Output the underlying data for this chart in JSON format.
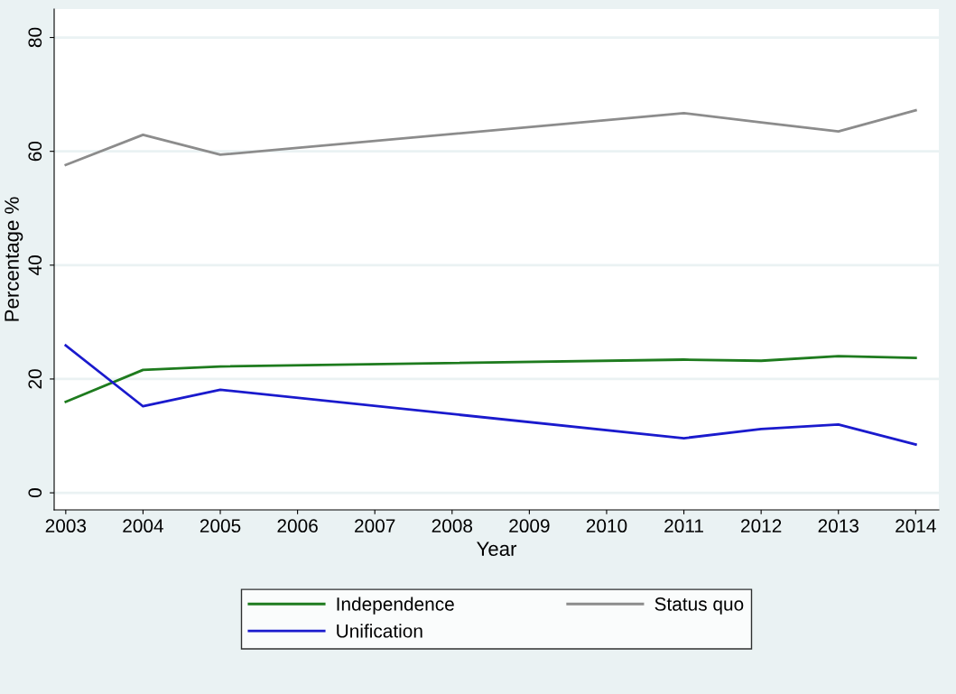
{
  "chart_data": {
    "type": "line",
    "xlabel": "Year",
    "ylabel": "Percentage %",
    "xlim": [
      2002.85,
      2014.3
    ],
    "xticks": [
      2003,
      2004,
      2005,
      2006,
      2007,
      2008,
      2009,
      2010,
      2011,
      2012,
      2013,
      2014
    ],
    "ylim": [
      -3,
      85
    ],
    "yticks": [
      0,
      20,
      40,
      60,
      80
    ],
    "grid": "y",
    "legend": "bottom",
    "marker": "none",
    "line_style": "solid",
    "series": [
      {
        "name": "Independence",
        "color": "#1e7b1e",
        "x": [
          2003,
          2004,
          2005,
          2011,
          2012,
          2013,
          2014
        ],
        "values": [
          16,
          21.6,
          22.2,
          23.4,
          23.2,
          24,
          23.7
        ]
      },
      {
        "name": "Status quo",
        "color": "#8c8c8c",
        "x": [
          2003,
          2004,
          2005,
          2011,
          2012,
          2013,
          2014
        ],
        "values": [
          57.6,
          62.9,
          59.4,
          66.7,
          65.1,
          63.5,
          67.2
        ]
      },
      {
        "name": "Unification",
        "color": "#1a1acd",
        "x": [
          2003,
          2004,
          2005,
          2011,
          2012,
          2013,
          2014
        ],
        "values": [
          25.9,
          15.2,
          18.1,
          9.6,
          11.2,
          12,
          8.5
        ]
      }
    ]
  }
}
